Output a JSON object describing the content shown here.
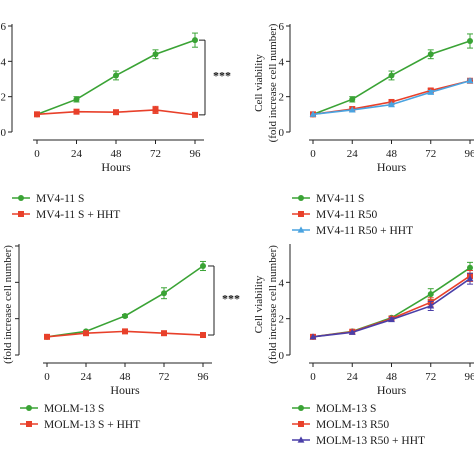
{
  "chart_data": [
    {
      "type": "line",
      "xlabel": "Hours",
      "ylabel": "",
      "x": [
        0,
        24,
        48,
        72,
        96
      ],
      "xticks": [
        "0",
        "24",
        "48",
        "72",
        "96"
      ],
      "yticks": [
        "0",
        "2",
        "4",
        "6"
      ],
      "ylim": [
        0,
        6
      ],
      "series": [
        {
          "name": "MV4-11 S",
          "color": "#3aa335",
          "marker": "circle",
          "values": [
            1.0,
            1.85,
            3.2,
            4.4,
            5.2
          ],
          "err": [
            0.05,
            0.15,
            0.25,
            0.25,
            0.4
          ]
        },
        {
          "name": "MV4-11 S + HHT",
          "color": "#e8402a",
          "marker": "square",
          "values": [
            1.0,
            1.15,
            1.12,
            1.25,
            0.97
          ],
          "err": [
            0.04,
            0.05,
            0.05,
            0.2,
            0.05
          ]
        }
      ],
      "significance": {
        "label": "***",
        "from": 5.2,
        "to": 0.97
      }
    },
    {
      "type": "line",
      "xlabel": "Hours",
      "ylabel": "Cell viability\n(fold increase cell number)",
      "x": [
        0,
        24,
        48,
        72,
        96
      ],
      "xticks": [
        "0",
        "24",
        "48",
        "72",
        "96"
      ],
      "yticks": [
        "0",
        "2",
        "4",
        "6"
      ],
      "ylim": [
        0,
        6
      ],
      "series": [
        {
          "name": "MV4-11 S",
          "color": "#3aa335",
          "marker": "circle",
          "values": [
            1.0,
            1.85,
            3.2,
            4.4,
            5.15
          ],
          "err": [
            0.05,
            0.15,
            0.25,
            0.25,
            0.4
          ]
        },
        {
          "name": "MV4-11 R50",
          "color": "#e8402a",
          "marker": "square",
          "values": [
            1.0,
            1.3,
            1.7,
            2.35,
            2.9
          ],
          "err": [
            0.04,
            0.05,
            0.08,
            0.1,
            0.1
          ]
        },
        {
          "name": "MV4-11 R50 + HHT",
          "color": "#4aa3e0",
          "marker": "triangle",
          "values": [
            1.0,
            1.25,
            1.55,
            2.25,
            2.9
          ],
          "err": [
            0.04,
            0.05,
            0.08,
            0.1,
            0.1
          ]
        }
      ]
    },
    {
      "type": "line",
      "xlabel": "Hours",
      "ylabel": "(fold increase cell number)",
      "x": [
        0,
        24,
        48,
        72,
        96
      ],
      "xticks": [
        "0",
        "24",
        "48",
        "72",
        "96"
      ],
      "yticks": [],
      "ylim": [
        0,
        6
      ],
      "series": [
        {
          "name": "MOLM-13 S",
          "color": "#3aa335",
          "marker": "circle",
          "values": [
            1.0,
            1.3,
            2.15,
            3.4,
            4.9
          ],
          "err": [
            0.04,
            0.05,
            0.08,
            0.3,
            0.25
          ]
        },
        {
          "name": "MOLM-13 S + HHT",
          "color": "#e8402a",
          "marker": "square",
          "values": [
            1.0,
            1.2,
            1.3,
            1.2,
            1.1
          ],
          "err": [
            0.04,
            0.05,
            0.08,
            0.05,
            0.05
          ]
        }
      ],
      "significance": {
        "label": "***",
        "from": 4.9,
        "to": 1.1
      }
    },
    {
      "type": "line",
      "xlabel": "Hours",
      "ylabel": "Cell viability\n(fold increase cell number)",
      "x": [
        0,
        24,
        48,
        72,
        96
      ],
      "xticks": [
        "0",
        "24",
        "48",
        "72",
        "96"
      ],
      "yticks": [
        "0",
        "2",
        "4"
      ],
      "ylim": [
        0,
        6
      ],
      "series": [
        {
          "name": "MOLM-13 S",
          "color": "#3aa335",
          "marker": "circle",
          "values": [
            1.0,
            1.3,
            2.05,
            3.35,
            4.8
          ],
          "err": [
            0.04,
            0.05,
            0.1,
            0.3,
            0.3
          ]
        },
        {
          "name": "MOLM-13 R50",
          "color": "#e8402a",
          "marker": "square",
          "values": [
            1.0,
            1.28,
            2.0,
            2.9,
            4.35
          ],
          "err": [
            0.04,
            0.05,
            0.1,
            0.25,
            0.3
          ]
        },
        {
          "name": "MOLM-13 R50 + HHT",
          "color": "#4a3fa8",
          "marker": "triangle",
          "values": [
            1.0,
            1.25,
            1.95,
            2.7,
            4.2
          ],
          "err": [
            0.04,
            0.05,
            0.1,
            0.25,
            0.3
          ]
        }
      ]
    }
  ]
}
